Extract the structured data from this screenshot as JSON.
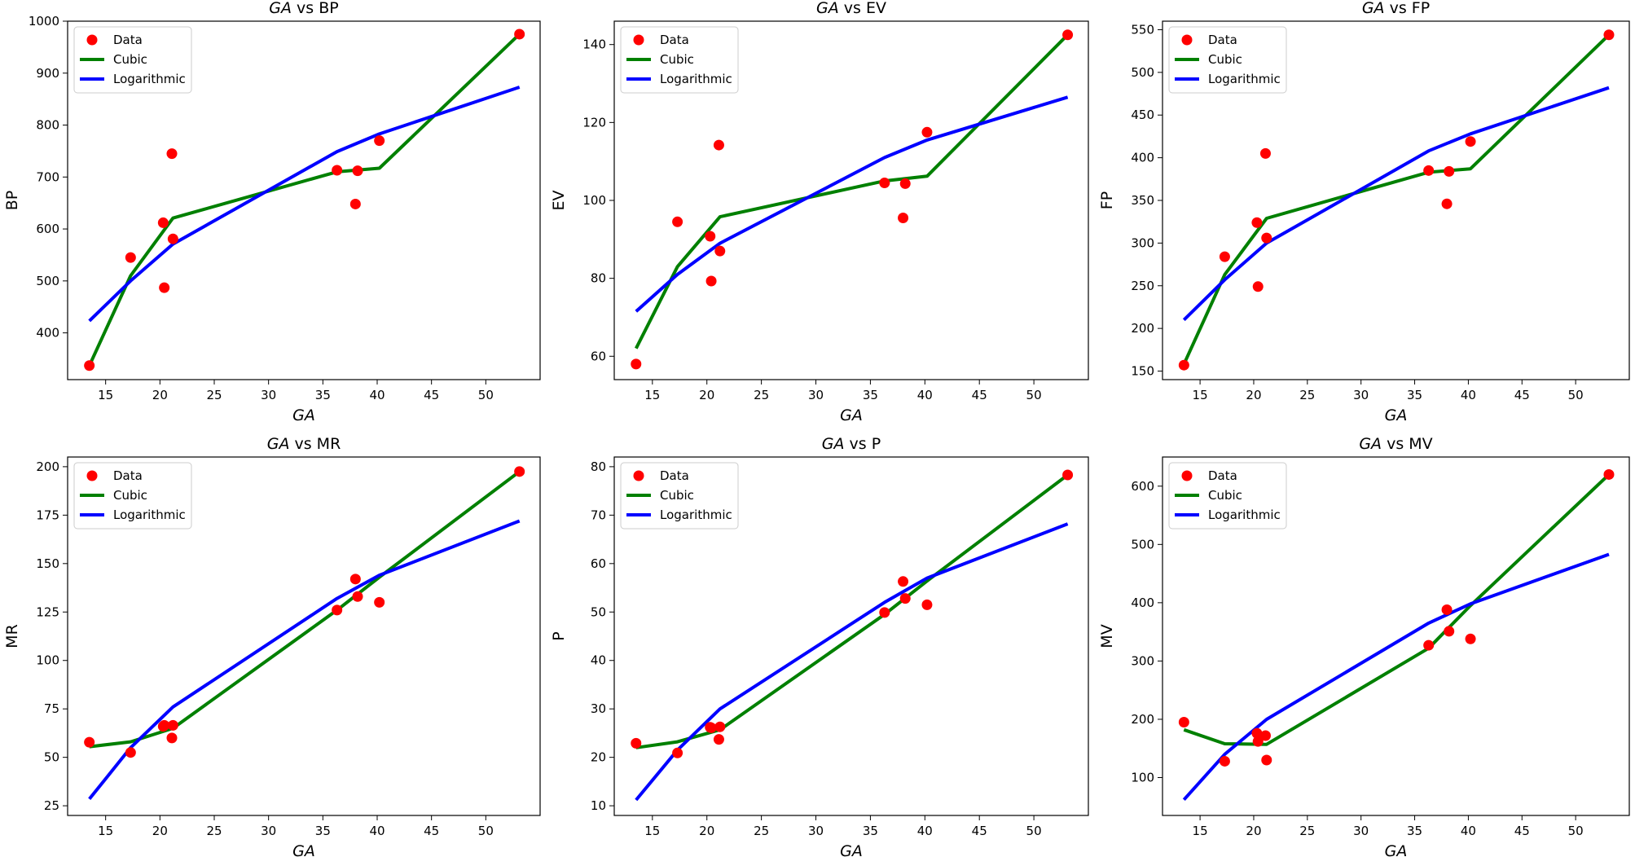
{
  "chart_data": [
    {
      "type": "scatter",
      "title": "GA vs BP",
      "title_italic": "GA",
      "title_rest": " vs BP",
      "xlabel": "GA",
      "ylabel": "BP",
      "xlim": [
        11.5,
        55
      ],
      "ylim": [
        310,
        1000
      ],
      "xticks": [
        15,
        20,
        25,
        30,
        35,
        40,
        45,
        50
      ],
      "yticks": [
        400,
        500,
        600,
        700,
        800,
        900,
        1000
      ],
      "legend": "top-left",
      "series": [
        {
          "name": "Data",
          "kind": "scatter",
          "color": "#ff0000",
          "x": [
            13.5,
            17.3,
            20.3,
            20.4,
            21.1,
            21.2,
            36.3,
            38.0,
            38.2,
            40.2,
            53.1
          ],
          "y": [
            337,
            545,
            612,
            487,
            745,
            581,
            713,
            648,
            712,
            770,
            975
          ]
        },
        {
          "name": "Cubic",
          "kind": "line",
          "color": "#008000",
          "x": [
            13.5,
            17.3,
            21.2,
            36.3,
            40.2,
            53.1
          ],
          "y": [
            337,
            510,
            621,
            710,
            717,
            975
          ]
        },
        {
          "name": "Logarithmic",
          "kind": "line",
          "color": "#0000ff",
          "x": [
            13.5,
            17.3,
            21.2,
            36.3,
            40.2,
            53.1
          ],
          "y": [
            423,
            500,
            571,
            749,
            783,
            873
          ]
        }
      ]
    },
    {
      "type": "scatter",
      "title": "GA vs EV",
      "title_italic": "GA",
      "title_rest": " vs EV",
      "xlabel": "GA",
      "ylabel": "EV",
      "xlim": [
        11.5,
        55
      ],
      "ylim": [
        54,
        146
      ],
      "xticks": [
        15,
        20,
        25,
        30,
        35,
        40,
        45,
        50
      ],
      "yticks": [
        60,
        80,
        100,
        120,
        140
      ],
      "legend": "top-left",
      "series": [
        {
          "name": "Data",
          "kind": "scatter",
          "color": "#ff0000",
          "x": [
            13.5,
            17.3,
            20.3,
            20.4,
            21.1,
            21.2,
            36.3,
            38.0,
            38.2,
            40.2,
            53.1
          ],
          "y": [
            58,
            94.5,
            90.8,
            79.3,
            114.2,
            87,
            104.5,
            95.5,
            104.3,
            117.5,
            142.5
          ]
        },
        {
          "name": "Cubic",
          "kind": "line",
          "color": "#008000",
          "x": [
            13.5,
            17.3,
            21.2,
            36.3,
            40.2,
            53.1
          ],
          "y": [
            62,
            83,
            95.8,
            105,
            106.2,
            142.5
          ]
        },
        {
          "name": "Logarithmic",
          "kind": "line",
          "color": "#0000ff",
          "x": [
            13.5,
            17.3,
            21.2,
            36.3,
            40.2,
            53.1
          ],
          "y": [
            71.5,
            81,
            89,
            111,
            115.5,
            126.5
          ]
        }
      ]
    },
    {
      "type": "scatter",
      "title": "GA vs FP",
      "title_italic": "GA",
      "title_rest": " vs FP",
      "xlabel": "GA",
      "ylabel": "FP",
      "xlim": [
        11.5,
        55
      ],
      "ylim": [
        140,
        560
      ],
      "xticks": [
        15,
        20,
        25,
        30,
        35,
        40,
        45,
        50
      ],
      "yticks": [
        150,
        200,
        250,
        300,
        350,
        400,
        450,
        500,
        550
      ],
      "legend": "top-left",
      "series": [
        {
          "name": "Data",
          "kind": "scatter",
          "color": "#ff0000",
          "x": [
            13.5,
            17.3,
            20.3,
            20.4,
            21.1,
            21.2,
            36.3,
            38.0,
            38.2,
            40.2,
            53.1
          ],
          "y": [
            157,
            284,
            324,
            249,
            405,
            306,
            385,
            346,
            384,
            419,
            544
          ]
        },
        {
          "name": "Cubic",
          "kind": "line",
          "color": "#008000",
          "x": [
            13.5,
            17.3,
            21.2,
            36.3,
            40.2,
            53.1
          ],
          "y": [
            158,
            263,
            329,
            383,
            387,
            544
          ]
        },
        {
          "name": "Logarithmic",
          "kind": "line",
          "color": "#0000ff",
          "x": [
            13.5,
            17.3,
            21.2,
            36.3,
            40.2,
            53.1
          ],
          "y": [
            210,
            257,
            300,
            408,
            428,
            482
          ]
        }
      ]
    },
    {
      "type": "scatter",
      "title": "GA vs MR",
      "title_italic": "GA",
      "title_rest": " vs MR",
      "xlabel": "GA",
      "ylabel": "MR",
      "xlim": [
        11.5,
        55
      ],
      "ylim": [
        20,
        205
      ],
      "xticks": [
        15,
        20,
        25,
        30,
        35,
        40,
        45,
        50
      ],
      "yticks": [
        25,
        50,
        75,
        100,
        125,
        150,
        175,
        200
      ],
      "legend": "top-left",
      "series": [
        {
          "name": "Data",
          "kind": "scatter",
          "color": "#ff0000",
          "x": [
            13.5,
            17.3,
            20.3,
            20.4,
            21.1,
            21.2,
            36.3,
            38.0,
            38.2,
            40.2,
            53.1
          ],
          "y": [
            57.8,
            52.5,
            66,
            66.5,
            60,
            66.5,
            126,
            142,
            133,
            130,
            197.5
          ]
        },
        {
          "name": "Cubic",
          "kind": "line",
          "color": "#008000",
          "x": [
            13.5,
            17.3,
            21.2,
            36.3,
            40.2,
            53.1
          ],
          "y": [
            55.5,
            58,
            65,
            126,
            143,
            197.5
          ]
        },
        {
          "name": "Logarithmic",
          "kind": "line",
          "color": "#0000ff",
          "x": [
            13.5,
            17.3,
            21.2,
            36.3,
            40.2,
            53.1
          ],
          "y": [
            28.5,
            55,
            76,
            132,
            144,
            172
          ]
        }
      ]
    },
    {
      "type": "scatter",
      "title": "GA vs P",
      "title_italic": "GA",
      "title_rest": " vs P",
      "xlabel": "GA",
      "ylabel": "P",
      "xlim": [
        11.5,
        55
      ],
      "ylim": [
        8,
        82
      ],
      "xticks": [
        15,
        20,
        25,
        30,
        35,
        40,
        45,
        50
      ],
      "yticks": [
        10,
        20,
        30,
        40,
        50,
        60,
        70,
        80
      ],
      "legend": "top-left",
      "series": [
        {
          "name": "Data",
          "kind": "scatter",
          "color": "#ff0000",
          "x": [
            13.5,
            17.3,
            20.3,
            20.4,
            21.1,
            21.2,
            36.3,
            38.0,
            38.2,
            40.2,
            53.1
          ],
          "y": [
            22.9,
            20.9,
            26.2,
            26.1,
            23.7,
            26.3,
            49.9,
            56.3,
            52.8,
            51.5,
            78.3
          ]
        },
        {
          "name": "Cubic",
          "kind": "line",
          "color": "#008000",
          "x": [
            13.5,
            17.3,
            21.2,
            36.3,
            40.2,
            53.1
          ],
          "y": [
            22,
            23.2,
            25.7,
            49.5,
            56.4,
            78.3
          ]
        },
        {
          "name": "Logarithmic",
          "kind": "line",
          "color": "#0000ff",
          "x": [
            13.5,
            17.3,
            21.2,
            36.3,
            40.2,
            53.1
          ],
          "y": [
            11.2,
            21.5,
            30,
            52,
            57,
            68.2
          ]
        }
      ]
    },
    {
      "type": "scatter",
      "title": "GA vs MV",
      "title_italic": "GA",
      "title_rest": " vs MV",
      "xlabel": "GA",
      "ylabel": "MV",
      "xlim": [
        11.5,
        55
      ],
      "ylim": [
        35,
        650
      ],
      "xticks": [
        15,
        20,
        25,
        30,
        35,
        40,
        45,
        50
      ],
      "yticks": [
        100,
        200,
        300,
        400,
        500,
        600
      ],
      "legend": "top-left",
      "series": [
        {
          "name": "Data",
          "kind": "scatter",
          "color": "#ff0000",
          "x": [
            13.5,
            17.3,
            20.3,
            20.4,
            21.1,
            21.2,
            36.3,
            38.0,
            38.2,
            40.2,
            53.1
          ],
          "y": [
            195,
            128,
            176,
            162,
            172,
            130,
            327,
            388,
            351,
            338,
            620
          ]
        },
        {
          "name": "Cubic",
          "kind": "line",
          "color": "#008000",
          "x": [
            13.5,
            17.3,
            21.2,
            36.3,
            40.2,
            53.1
          ],
          "y": [
            182,
            158,
            157,
            322,
            395,
            620
          ]
        },
        {
          "name": "Logarithmic",
          "kind": "line",
          "color": "#0000ff",
          "x": [
            13.5,
            17.3,
            21.2,
            36.3,
            40.2,
            53.1
          ],
          "y": [
            62,
            140,
            200,
            365,
            398,
            483
          ]
        }
      ]
    }
  ]
}
